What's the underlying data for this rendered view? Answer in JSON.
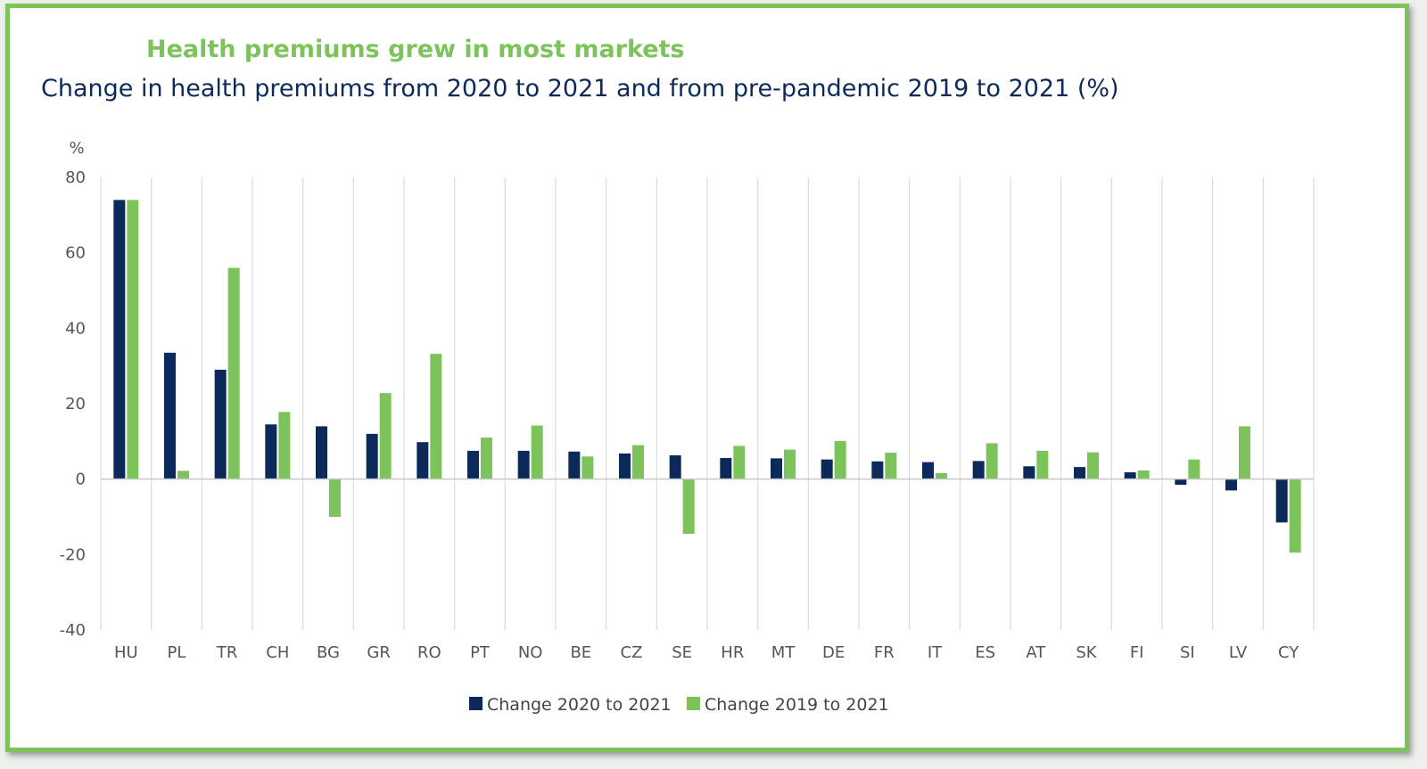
{
  "chart_data": {
    "type": "bar",
    "title": "Health premiums grew in most markets",
    "subtitle": "Change in health premiums from 2020 to 2021 and from pre-pandemic 2019 to 2021 (%)",
    "ylabel": "%",
    "xlabel": "",
    "ylim": [
      -40,
      80
    ],
    "yticks": [
      80,
      60,
      40,
      20,
      0,
      -20,
      -40
    ],
    "ytick_labels": [
      "80",
      "60",
      "40",
      "20",
      "0",
      "-20",
      "-40"
    ],
    "grid": "vertical",
    "legend_position": "bottom-center",
    "categories": [
      "HU",
      "PL",
      "TR",
      "CH",
      "BG",
      "GR",
      "RO",
      "PT",
      "NO",
      "BE",
      "CZ",
      "SE",
      "HR",
      "MT",
      "DE",
      "FR",
      "IT",
      "ES",
      "AT",
      "SK",
      "FI",
      "SI",
      "LV",
      "CY"
    ],
    "series": [
      {
        "name": "Change 2020 to 2021",
        "color": "#0b2a5a",
        "values": [
          74,
          33.5,
          29,
          14.5,
          14,
          12,
          9.8,
          7.5,
          7.5,
          7.3,
          6.8,
          6.3,
          5.6,
          5.5,
          5.2,
          4.7,
          4.5,
          4.8,
          3.4,
          3.2,
          1.8,
          -1.5,
          -3,
          -11.5
        ]
      },
      {
        "name": "Change 2019 to 2021",
        "color": "#7dc35b",
        "values": [
          74,
          2.2,
          56,
          17.8,
          -10,
          22.8,
          33.2,
          11,
          14.2,
          6,
          9,
          -14.5,
          8.8,
          7.8,
          10.1,
          7,
          1.6,
          9.5,
          7.5,
          7.1,
          2.3,
          5.2,
          14,
          -19.5
        ]
      }
    ]
  }
}
